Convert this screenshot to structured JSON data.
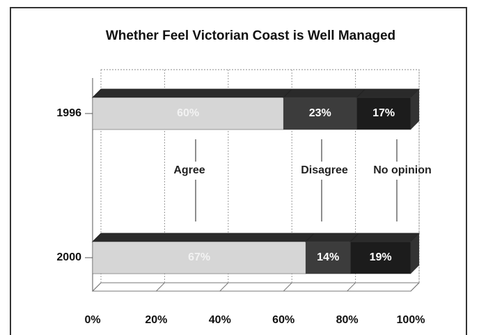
{
  "chart_data": {
    "type": "bar",
    "orientation": "horizontal",
    "stacked": true,
    "title": "Whether Feel Victorian Coast is Well Managed",
    "categories": [
      "1996",
      "2000"
    ],
    "series": [
      {
        "name": "Agree",
        "color": "#d6d6d6",
        "values": [
          60,
          67
        ],
        "value_labels": [
          "60%",
          "67%"
        ]
      },
      {
        "name": "Disagree",
        "color": "#3c3c3c",
        "values": [
          23,
          14
        ],
        "value_labels": [
          "23%",
          "14%"
        ]
      },
      {
        "name": "No opinion",
        "color": "#1c1c1c",
        "values": [
          17,
          19
        ],
        "value_labels": [
          "17%",
          "19%"
        ]
      }
    ],
    "xlim": [
      0,
      100
    ],
    "xticks": [
      {
        "value": 0,
        "label": "0%"
      },
      {
        "value": 20,
        "label": "20%"
      },
      {
        "value": 40,
        "label": "40%"
      },
      {
        "value": 60,
        "label": "60%"
      },
      {
        "value": 80,
        "label": "80%"
      },
      {
        "value": 100,
        "label": "100%"
      }
    ],
    "grid": true
  }
}
